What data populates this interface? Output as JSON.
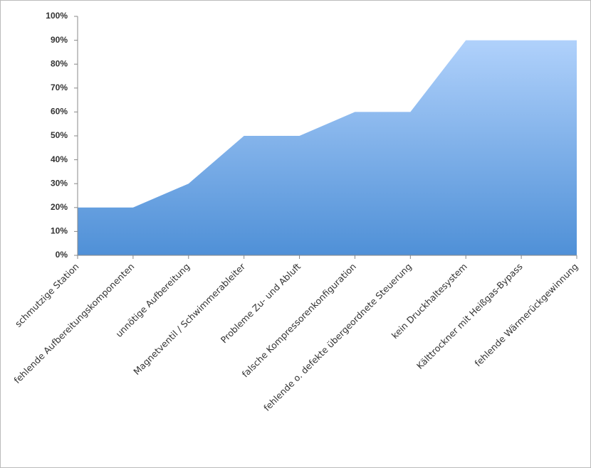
{
  "chart_data": {
    "type": "area",
    "categories": [
      "schmutzige Station",
      "fehlende Aufbereitungskomponenten",
      "unnötige Aufbereitung",
      "Magnetventil / Schwimmerableiter",
      "Probleme Zu- und Abluft",
      "falsche Kompressorenkonfiguration",
      "fehlende o. defekte übergeordnete Steuerung",
      "kein Druckhaltesystem",
      "Kälttrockner mit Heißgas-Bypass",
      "fehlende Wärmerückgewinnung"
    ],
    "values": [
      20,
      20,
      30,
      50,
      50,
      60,
      60,
      90,
      90,
      90
    ],
    "ylim": [
      0,
      100
    ],
    "yticks": [
      {
        "value": 0,
        "label": "0%"
      },
      {
        "value": 10,
        "label": "10%"
      },
      {
        "value": 20,
        "label": "20%"
      },
      {
        "value": 30,
        "label": "30%"
      },
      {
        "value": 40,
        "label": "40%"
      },
      {
        "value": 50,
        "label": "50%"
      },
      {
        "value": 60,
        "label": "60%"
      },
      {
        "value": 70,
        "label": "70%"
      },
      {
        "value": 80,
        "label": "80%"
      },
      {
        "value": 90,
        "label": "90%"
      },
      {
        "value": 100,
        "label": "100%"
      }
    ]
  }
}
